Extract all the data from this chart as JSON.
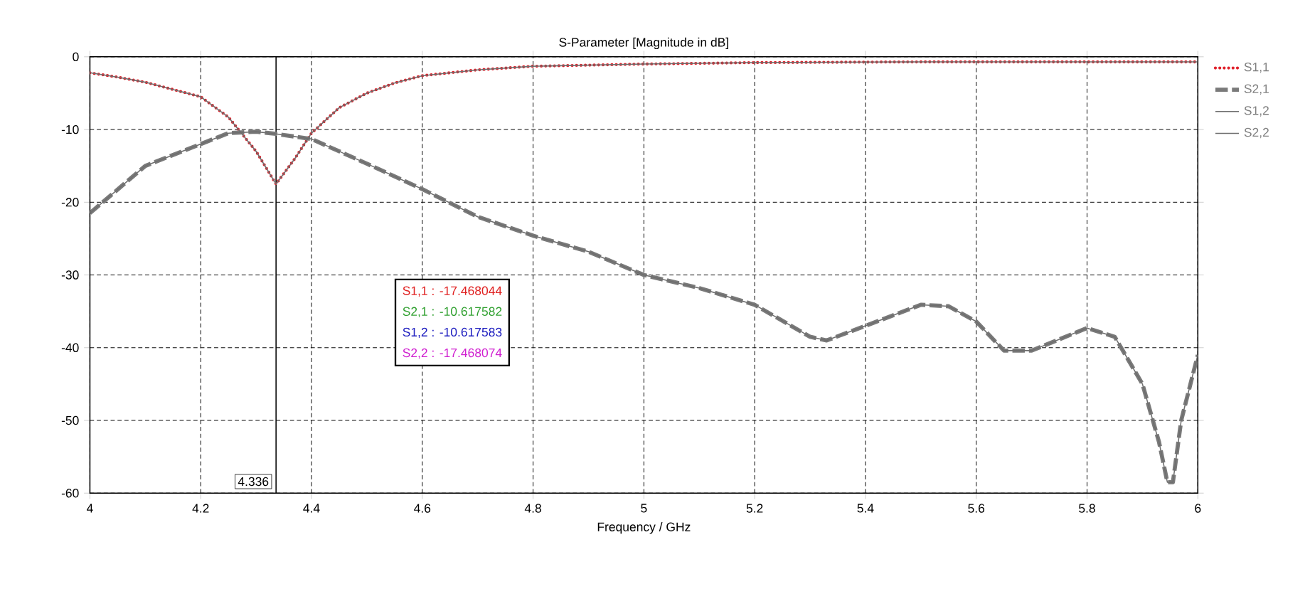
{
  "chart_data": {
    "type": "line",
    "title": "S-Parameter [Magnitude in dB]",
    "xlabel": "Frequency / GHz",
    "xlim": [
      4,
      6
    ],
    "xticks": [
      4,
      4.2,
      4.4,
      4.6,
      4.8,
      5,
      5.2,
      5.4,
      5.6,
      5.8,
      6
    ],
    "ylim": [
      -60,
      0
    ],
    "yticks": [
      -60,
      -50,
      -40,
      -30,
      -20,
      -10,
      0
    ],
    "grid": true,
    "legend": "right",
    "series": [
      {
        "name": "S1,1",
        "color": "#e0202a",
        "line_style": "dotted",
        "x": [
          4.0,
          4.05,
          4.1,
          4.15,
          4.2,
          4.25,
          4.3,
          4.336,
          4.37,
          4.4,
          4.45,
          4.5,
          4.55,
          4.6,
          4.7,
          4.8,
          5.0,
          5.2,
          5.5,
          6.0
        ],
        "values": [
          -2.2,
          -2.8,
          -3.5,
          -4.5,
          -5.5,
          -8.3,
          -13,
          -17.5,
          -14,
          -10.5,
          -7,
          -5,
          -3.6,
          -2.6,
          -1.8,
          -1.3,
          -1.0,
          -0.8,
          -0.7,
          -0.7
        ]
      },
      {
        "name": "S2,1",
        "color": "#7a7a7a",
        "line_style": "dashed",
        "x": [
          4.0,
          4.1,
          4.2,
          4.25,
          4.3,
          4.336,
          4.4,
          4.5,
          4.6,
          4.7,
          4.8,
          4.9,
          5.0,
          5.1,
          5.2,
          5.3,
          5.33,
          5.4,
          5.5,
          5.55,
          5.6,
          5.65,
          5.7,
          5.8,
          5.85,
          5.9,
          5.93,
          5.945,
          5.955,
          5.97,
          6.0
        ],
        "values": [
          -21.5,
          -15,
          -12,
          -10.5,
          -10.3,
          -10.6,
          -11.3,
          -14.7,
          -18.2,
          -22,
          -24.6,
          -26.8,
          -30,
          -31.8,
          -34.1,
          -38.5,
          -39,
          -37,
          -34.1,
          -34.3,
          -36.4,
          -40.4,
          -40.4,
          -37.3,
          -38.5,
          -45,
          -53,
          -58.5,
          -58.5,
          -50,
          -41
        ]
      },
      {
        "name": "S1,2",
        "color": "#6e6e6e",
        "line_style": "solid",
        "x": [
          4.0,
          4.1,
          4.2,
          4.25,
          4.3,
          4.336,
          4.4,
          4.5,
          4.6,
          4.7,
          4.8,
          4.9,
          5.0,
          5.1,
          5.2,
          5.3,
          5.33,
          5.4,
          5.5,
          5.55,
          5.6,
          5.65,
          5.7,
          5.8,
          5.85,
          5.9,
          5.93,
          5.945,
          5.955,
          5.97,
          6.0
        ],
        "values": [
          -21.5,
          -15,
          -12,
          -10.5,
          -10.3,
          -10.6,
          -11.3,
          -14.7,
          -18.2,
          -22,
          -24.6,
          -26.8,
          -30,
          -31.8,
          -34.1,
          -38.5,
          -39,
          -37,
          -34.1,
          -34.3,
          -36.4,
          -40.4,
          -40.4,
          -37.3,
          -38.5,
          -45,
          -53,
          -58.5,
          -58.5,
          -50,
          -41
        ]
      },
      {
        "name": "S2,2",
        "color": "#6e6e6e",
        "line_style": "solid",
        "x": [
          4.0,
          4.05,
          4.1,
          4.15,
          4.2,
          4.25,
          4.3,
          4.336,
          4.37,
          4.4,
          4.45,
          4.5,
          4.55,
          4.6,
          4.7,
          4.8,
          5.0,
          5.2,
          5.5,
          6.0
        ],
        "values": [
          -2.2,
          -2.8,
          -3.5,
          -4.5,
          -5.5,
          -8.3,
          -13,
          -17.5,
          -14,
          -10.5,
          -7,
          -5,
          -3.6,
          -2.6,
          -1.8,
          -1.3,
          -1.0,
          -0.8,
          -0.7,
          -0.7
        ]
      }
    ],
    "ref_lines": [
      {
        "axis": "x",
        "value": 4.336,
        "label": "4.336",
        "color": "#000000"
      }
    ],
    "annotations": [
      "S1,1 : -17.468044",
      "S2,1 : -10.617582",
      "S1,2 : -10.617583",
      "S2,2 : -17.468074"
    ]
  }
}
